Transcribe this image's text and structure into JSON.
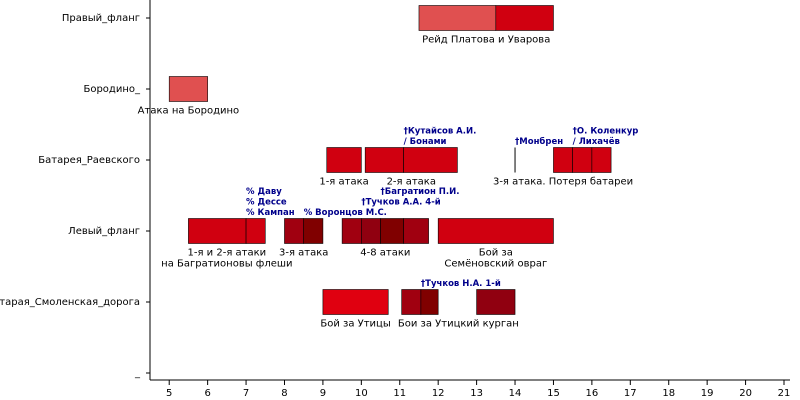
{
  "chart_data": {
    "type": "timeline",
    "xlim": [
      4.5,
      21
    ],
    "xticks": [
      5,
      6,
      7,
      8,
      9,
      10,
      11,
      12,
      13,
      14,
      15,
      16,
      17,
      18,
      19,
      20,
      21
    ],
    "rows": [
      {
        "name": "Правый_фланг",
        "events": [
          {
            "label": [
              "Рейд Платова и Уварова"
            ],
            "segments": [
              {
                "start": 11.5,
                "end": 13.5,
                "color": "#e05050"
              },
              {
                "start": 13.5,
                "end": 15,
                "color": "#d00010"
              }
            ]
          }
        ],
        "annotations": []
      },
      {
        "name": "Бородино_",
        "events": [
          {
            "label": [
              "Атака на Бородино"
            ],
            "segments": [
              {
                "start": 5,
                "end": 6,
                "color": "#e05050"
              }
            ]
          }
        ],
        "annotations": []
      },
      {
        "name": "Батарея_Раевского",
        "events": [
          {
            "label": [
              "1-я атака"
            ],
            "segments": [
              {
                "start": 9.1,
                "end": 10,
                "color": "#d00010"
              }
            ]
          },
          {
            "label": [
              "2-я атака"
            ],
            "segments": [
              {
                "start": 10.1,
                "end": 11.1,
                "color": "#d00010"
              },
              {
                "start": 11.1,
                "end": 12.5,
                "color": "#d00010"
              }
            ]
          },
          {
            "label": [
              "3-я атака. Потеря батареи"
            ],
            "segments": [
              {
                "start": 14,
                "end": 14,
                "color": "#000000"
              },
              {
                "start": 15,
                "end": 15.5,
                "color": "#d00010"
              },
              {
                "start": 15.5,
                "end": 16,
                "color": "#d00010"
              },
              {
                "start": 16,
                "end": 16.5,
                "color": "#d00010"
              }
            ]
          }
        ],
        "annotations": [
          {
            "time": 11.1,
            "lines": [
              "†Кутайсов А.И.",
              "/ Бонами"
            ]
          },
          {
            "time": 14,
            "lines": [
              "†Монбрен"
            ]
          },
          {
            "time": 15.5,
            "lines": [
              "†О. Коленкур",
              "/ Лихачёв"
            ]
          }
        ]
      },
      {
        "name": "Левый_фланг",
        "events": [
          {
            "label": [
              "1-я и 2-я атаки",
              "на Багратионовы флеши"
            ],
            "segments": [
              {
                "start": 5.5,
                "end": 7,
                "color": "#d00010"
              },
              {
                "start": 7,
                "end": 7.5,
                "color": "#d00010"
              }
            ]
          },
          {
            "label": [
              "3-я атака"
            ],
            "segments": [
              {
                "start": 8,
                "end": 8.5,
                "color": "#a00010"
              },
              {
                "start": 8.5,
                "end": 9,
                "color": "#800000"
              }
            ]
          },
          {
            "label": [
              "4-8 атаки"
            ],
            "segments": [
              {
                "start": 9.5,
                "end": 10,
                "color": "#a00010"
              },
              {
                "start": 10,
                "end": 10.5,
                "color": "#900010"
              },
              {
                "start": 10.5,
                "end": 11.1,
                "color": "#800000"
              },
              {
                "start": 11.1,
                "end": 11.75,
                "color": "#a00010"
              }
            ]
          },
          {
            "label": [
              "Бой за",
              "Семёновский овраг"
            ],
            "segments": [
              {
                "start": 12,
                "end": 15,
                "color": "#d00010"
              }
            ]
          }
        ],
        "annotations": [
          {
            "time": 7,
            "lines": [
              "% Даву",
              "% Дессе",
              "% Кампан"
            ]
          },
          {
            "time": 8.5,
            "lines": [
              "% Воронцов М.С."
            ]
          },
          {
            "time": 10,
            "lines": [
              "†Тучков А.А. 4-й"
            ]
          },
          {
            "time": 10.5,
            "lines": [
              "†Багратион П.И."
            ]
          }
        ]
      },
      {
        "name": "Старая_Смоленская_дорога",
        "events": [
          {
            "label": [
              "Бой за Утицы"
            ],
            "segments": [
              {
                "start": 9,
                "end": 10.7,
                "color": "#e00010"
              }
            ]
          },
          {
            "label": [
              "Бои за Утицкий курган"
            ],
            "segments": [
              {
                "start": 11.05,
                "end": 11.55,
                "color": "#a00010"
              },
              {
                "start": 11.55,
                "end": 12,
                "color": "#800000"
              },
              {
                "start": 13,
                "end": 14,
                "color": "#900010"
              }
            ]
          }
        ],
        "annotations": [
          {
            "time": 11.55,
            "lines": [
              "†Тучков Н.А. 1-й"
            ]
          }
        ]
      },
      {
        "name": "_",
        "events": [],
        "annotations": []
      }
    ]
  }
}
